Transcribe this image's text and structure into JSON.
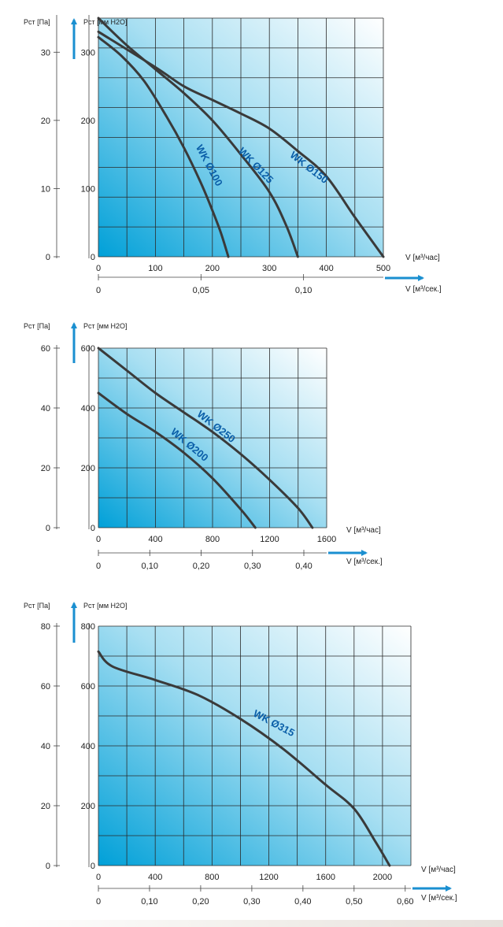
{
  "chart_data": [
    {
      "type": "line",
      "y_label_left": "Pст [Па]",
      "y_label_right": "Pст [мм H2O]",
      "x_label_top": "V [м³/час]",
      "x_label_bottom": "V [м³/сек.]",
      "xlim": [
        0,
        500
      ],
      "ylim": [
        0,
        350
      ],
      "x_ticks": [
        0,
        100,
        200,
        300,
        400,
        500
      ],
      "y_ticks_pa": [
        0,
        100,
        200,
        300
      ],
      "y_ticks_mm": [
        0,
        10,
        20,
        30
      ],
      "x2_ticks": [
        {
          "value": 0,
          "label": "0"
        },
        {
          "value": 180,
          "label": "0,05"
        },
        {
          "value": 360,
          "label": "0,10"
        }
      ],
      "grid": true,
      "series": [
        {
          "name": "WK Ø100",
          "x": [
            0,
            40,
            80,
            120,
            150,
            180,
            200,
            215,
            228
          ],
          "y": [
            322,
            295,
            258,
            205,
            160,
            108,
            68,
            35,
            0
          ]
        },
        {
          "name": "WK Ø125",
          "x": [
            0,
            50,
            100,
            150,
            200,
            250,
            300,
            330,
            350
          ],
          "y": [
            350,
            310,
            275,
            240,
            200,
            150,
            95,
            45,
            0
          ]
        },
        {
          "name": "WK Ø150",
          "x": [
            0,
            100,
            150,
            200,
            250,
            300,
            350,
            400,
            450,
            500
          ],
          "y": [
            330,
            278,
            250,
            230,
            210,
            188,
            155,
            118,
            58,
            0
          ]
        }
      ]
    },
    {
      "type": "line",
      "y_label_left": "Pст [Па]",
      "y_label_right": "Pст [мм H2O]",
      "x_label_top": "V [м³/час]",
      "x_label_bottom": "V [м³/сек.]",
      "xlim": [
        0,
        1600
      ],
      "ylim": [
        0,
        600
      ],
      "x_ticks": [
        0,
        400,
        800,
        1200,
        1600
      ],
      "y_ticks_pa": [
        0,
        200,
        400,
        600
      ],
      "y_ticks_mm": [
        0,
        20,
        40,
        60
      ],
      "x2_ticks": [
        {
          "value": 0,
          "label": "0"
        },
        {
          "value": 360,
          "label": "0,10"
        },
        {
          "value": 720,
          "label": "0,20"
        },
        {
          "value": 1080,
          "label": "0,30"
        },
        {
          "value": 1440,
          "label": "0,40"
        }
      ],
      "grid": true,
      "series": [
        {
          "name": "WK Ø200",
          "x": [
            0,
            200,
            400,
            600,
            800,
            1000,
            1100
          ],
          "y": [
            450,
            380,
            320,
            250,
            165,
            60,
            0
          ]
        },
        {
          "name": "WK Ø250",
          "x": [
            0,
            200,
            400,
            600,
            800,
            1000,
            1200,
            1400,
            1500
          ],
          "y": [
            600,
            525,
            450,
            385,
            320,
            245,
            160,
            65,
            0
          ]
        }
      ]
    },
    {
      "type": "line",
      "y_label_left": "Pст [Па]",
      "y_label_right": "Pст [мм H2O]",
      "x_label_top": "V [м³/час]",
      "x_label_bottom": "V [м³/сек.]",
      "xlim": [
        0,
        2200
      ],
      "ylim": [
        0,
        800
      ],
      "x_ticks": [
        0,
        400,
        800,
        1200,
        1600,
        2000
      ],
      "y_ticks_pa": [
        0,
        200,
        400,
        600,
        800
      ],
      "y_ticks_mm": [
        0,
        20,
        40,
        60,
        80
      ],
      "x2_ticks": [
        {
          "value": 0,
          "label": "0"
        },
        {
          "value": 360,
          "label": "0,10"
        },
        {
          "value": 720,
          "label": "0,20"
        },
        {
          "value": 1080,
          "label": "0,30"
        },
        {
          "value": 1440,
          "label": "0,40"
        },
        {
          "value": 1800,
          "label": "0,50"
        },
        {
          "value": 2160,
          "label": "0,60"
        }
      ],
      "grid": true,
      "series": [
        {
          "name": "WK Ø315",
          "x": [
            0,
            100,
            400,
            700,
            1000,
            1300,
            1600,
            1800,
            1950,
            2050
          ],
          "y": [
            715,
            665,
            620,
            570,
            490,
            390,
            270,
            190,
            80,
            0
          ]
        }
      ]
    }
  ]
}
